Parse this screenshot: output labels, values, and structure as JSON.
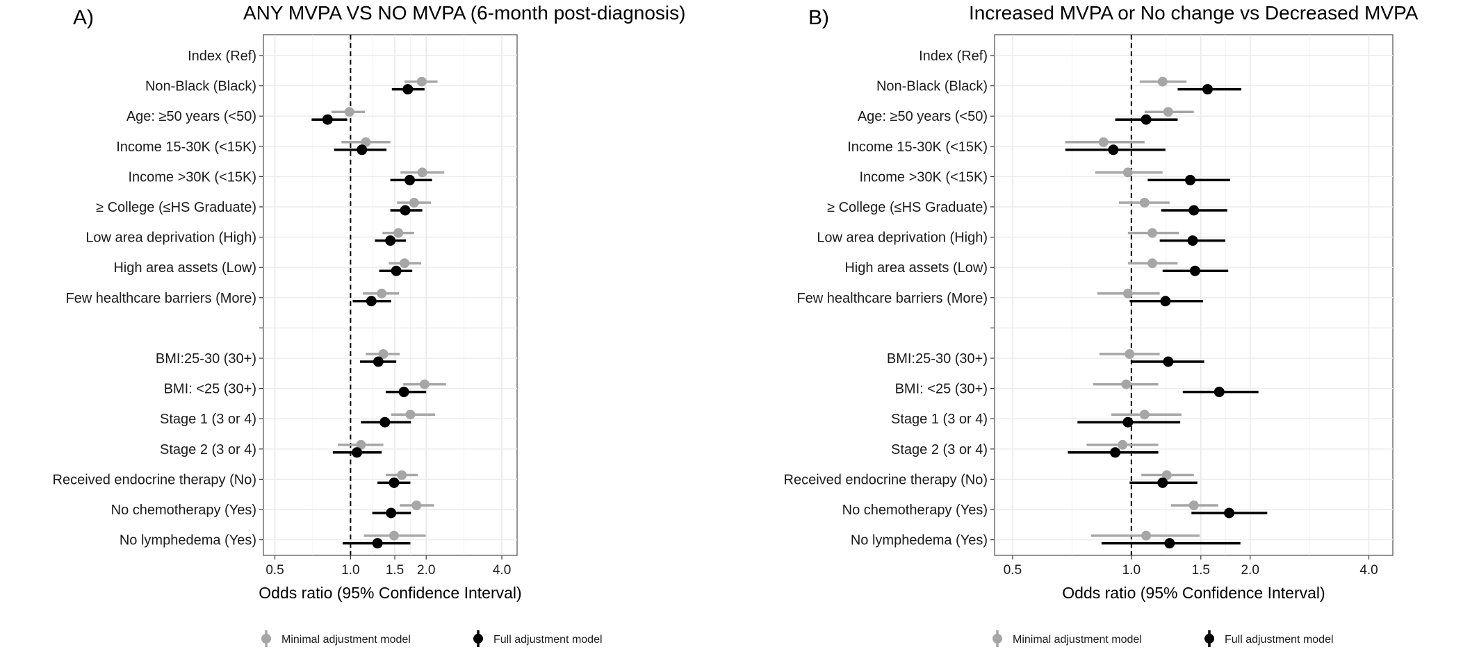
{
  "chart_data": [
    {
      "type": "scatter",
      "subtype": "forest-plot",
      "panel": "A)",
      "title": "ANY MVPA VS NO MVPA (6-month post-diagnosis)",
      "xlabel": "Odds ratio (95% Confidence Interval)",
      "xscale": "log",
      "xlim": [
        0.45,
        4.6
      ],
      "xticks": [
        0.5,
        1.0,
        1.5,
        2.0,
        4.0
      ],
      "xtick_labels": [
        "0.5",
        "1.0",
        "1.5",
        "2.0",
        "4.0"
      ],
      "reference_line": 1.0,
      "grid": true,
      "categories": [
        "Index (Ref)",
        "Non-Black (Black)",
        "Age: ≥50 years (<50)",
        "Income 15-30K (<15K)",
        "Income >30K (<15K)",
        "≥ College (≤HS Graduate)",
        "Low area deprivation (High)",
        "High area assets (Low)",
        "Few healthcare barriers (More)",
        "",
        "BMI:25-30 (30+)",
        "BMI: <25 (30+)",
        "Stage 1 (3 or 4)",
        "Stage 2 (3 or 4)",
        "Received endocrine therapy (No)",
        "No chemotherapy (Yes)",
        "No lymphedema (Yes)"
      ],
      "series": [
        {
          "name": "Minimal adjustment model",
          "color": "#a6a6a6",
          "values": [
            null,
            1.92,
            0.99,
            1.15,
            1.93,
            1.79,
            1.55,
            1.64,
            1.33,
            null,
            1.35,
            1.97,
            1.73,
            1.1,
            1.6,
            1.83,
            1.49
          ],
          "lower": [
            null,
            1.64,
            0.84,
            0.92,
            1.58,
            1.53,
            1.34,
            1.42,
            1.12,
            null,
            1.15,
            1.62,
            1.45,
            0.89,
            1.38,
            1.57,
            1.13
          ],
          "upper": [
            null,
            2.22,
            1.14,
            1.44,
            2.36,
            2.09,
            1.79,
            1.91,
            1.56,
            null,
            1.57,
            2.4,
            2.17,
            1.35,
            1.85,
            2.15,
            1.99
          ]
        },
        {
          "name": "Full adjustment model",
          "color": "#000000",
          "values": [
            null,
            1.69,
            0.81,
            1.11,
            1.72,
            1.65,
            1.44,
            1.52,
            1.21,
            null,
            1.29,
            1.63,
            1.37,
            1.06,
            1.49,
            1.45,
            1.28
          ],
          "lower": [
            null,
            1.46,
            0.7,
            0.86,
            1.44,
            1.44,
            1.25,
            1.3,
            1.02,
            null,
            1.09,
            1.38,
            1.1,
            0.85,
            1.28,
            1.22,
            0.93
          ],
          "upper": [
            null,
            1.97,
            0.97,
            1.39,
            2.11,
            1.93,
            1.66,
            1.76,
            1.45,
            null,
            1.52,
            2.0,
            1.74,
            1.33,
            1.73,
            1.74,
            1.73
          ]
        }
      ]
    },
    {
      "type": "scatter",
      "subtype": "forest-plot",
      "panel": "B)",
      "title": "Increased MVPA or No change vs Decreased MVPA",
      "xlabel": "Odds ratio (95% Confidence Interval)",
      "xscale": "log",
      "xlim": [
        0.45,
        4.6
      ],
      "xticks": [
        0.5,
        1.0,
        1.5,
        2.0,
        4.0
      ],
      "xtick_labels": [
        "0.5",
        "1.0",
        "1.5",
        "2.0",
        "4.0"
      ],
      "reference_line": 1.0,
      "grid": true,
      "categories": [
        "Index (Ref)",
        "Non-Black (Black)",
        "Age: ≥50 years (<50)",
        "Income 15-30K (<15K)",
        "Income >30K (<15K)",
        "≥ College (≤HS Graduate)",
        "Low area deprivation (High)",
        "High area assets (Low)",
        "Few healthcare barriers (More)",
        "",
        "BMI:25-30 (30+)",
        "BMI: <25 (30+)",
        "Stage 1 (3 or 4)",
        "Stage 2 (3 or 4)",
        "Received endocrine therapy (No)",
        "No chemotherapy (Yes)",
        "No lymphedema (Yes)"
      ],
      "series": [
        {
          "name": "Minimal adjustment model",
          "color": "#a6a6a6",
          "values": [
            null,
            1.2,
            1.24,
            0.85,
            0.98,
            1.08,
            1.13,
            1.13,
            0.98,
            null,
            0.99,
            0.97,
            1.08,
            0.95,
            1.23,
            1.44,
            1.09
          ],
          "lower": [
            null,
            1.05,
            1.08,
            0.68,
            0.81,
            0.93,
            0.98,
            0.98,
            0.82,
            null,
            0.83,
            0.8,
            0.89,
            0.77,
            1.06,
            1.26,
            0.79
          ],
          "upper": [
            null,
            1.38,
            1.44,
            1.08,
            1.2,
            1.25,
            1.32,
            1.31,
            1.18,
            null,
            1.18,
            1.17,
            1.34,
            1.17,
            1.44,
            1.66,
            1.49
          ]
        },
        {
          "name": "Full adjustment model",
          "color": "#000000",
          "values": [
            null,
            1.56,
            1.09,
            0.9,
            1.41,
            1.44,
            1.43,
            1.45,
            1.22,
            null,
            1.24,
            1.67,
            0.98,
            0.91,
            1.2,
            1.77,
            1.25
          ],
          "lower": [
            null,
            1.31,
            0.91,
            0.68,
            1.1,
            1.19,
            1.18,
            1.2,
            0.99,
            null,
            1.0,
            1.35,
            0.73,
            0.69,
            0.99,
            1.42,
            0.84
          ],
          "upper": [
            null,
            1.9,
            1.31,
            1.22,
            1.78,
            1.75,
            1.73,
            1.76,
            1.52,
            null,
            1.53,
            2.1,
            1.33,
            1.17,
            1.47,
            2.21,
            1.89
          ]
        }
      ]
    }
  ]
}
